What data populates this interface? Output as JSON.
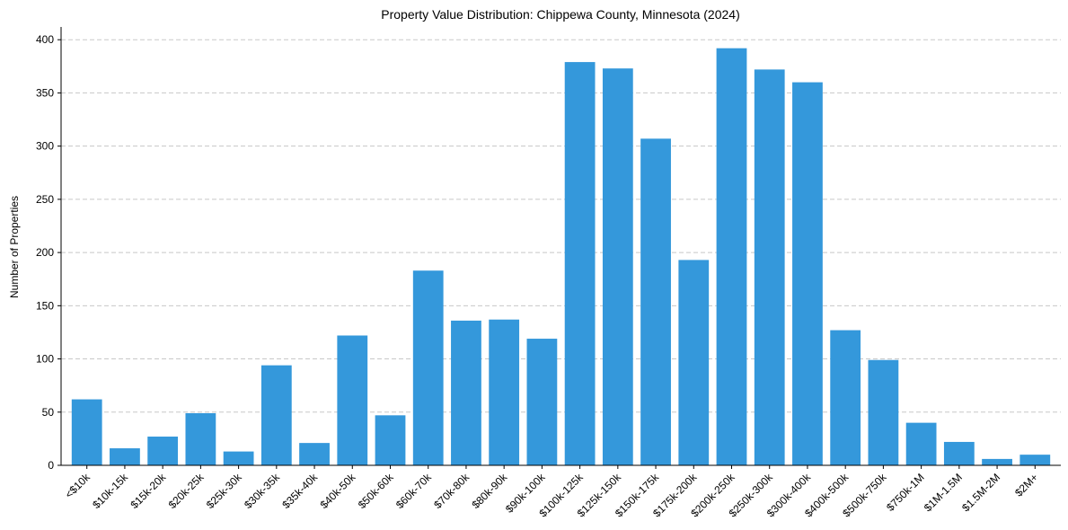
{
  "chart_data": {
    "type": "bar",
    "title": "Property Value Distribution: Chippewa County, Minnesota (2024)",
    "xlabel": "",
    "ylabel": "Number of Properties",
    "ylim": [
      0,
      412
    ],
    "yticks": [
      0,
      50,
      100,
      150,
      200,
      250,
      300,
      350,
      400
    ],
    "grid": "y-dashed",
    "color": "#3498db",
    "categories": [
      "<$10k",
      "$10k-15k",
      "$15k-20k",
      "$20k-25k",
      "$25k-30k",
      "$30k-35k",
      "$35k-40k",
      "$40k-50k",
      "$50k-60k",
      "$60k-70k",
      "$70k-80k",
      "$80k-90k",
      "$90k-100k",
      "$100k-125k",
      "$125k-150k",
      "$150k-175k",
      "$175k-200k",
      "$200k-250k",
      "$250k-300k",
      "$300k-400k",
      "$400k-500k",
      "$500k-750k",
      "$750k-1M",
      "$1M-1.5M",
      "$1.5M-2M",
      "$2M+"
    ],
    "values": [
      62,
      16,
      27,
      49,
      13,
      94,
      21,
      122,
      47,
      183,
      136,
      137,
      119,
      379,
      373,
      307,
      193,
      392,
      372,
      360,
      127,
      99,
      40,
      22,
      6,
      10
    ]
  }
}
